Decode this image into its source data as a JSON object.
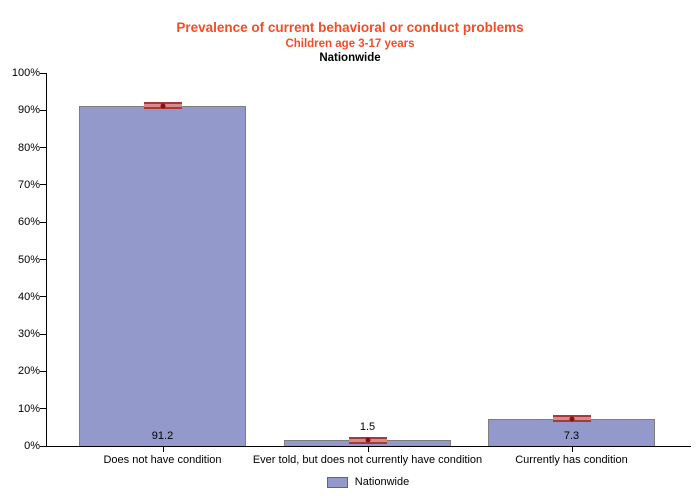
{
  "chart_data": {
    "type": "bar",
    "title": "Prevalence of current behavioral or conduct problems",
    "subtitle": "Children age 3-17 years",
    "region_line": "Nationwide",
    "categories": [
      "Does not have condition",
      "Ever told, but does not currently have condition",
      "Currently has condition"
    ],
    "series": [
      {
        "name": "Nationwide",
        "values": [
          91.2,
          1.5,
          7.3
        ]
      }
    ],
    "value_labels": [
      "91.2",
      "1.5",
      "7.3"
    ],
    "ylabel_ticks": [
      "0%",
      "10%",
      "20%",
      "30%",
      "40%",
      "50%",
      "60%",
      "70%",
      "80%",
      "90%",
      "100%"
    ],
    "ylim": [
      0,
      100
    ],
    "y_tick_step": 10,
    "grid": "off",
    "error_bars": true,
    "legend": {
      "position": "bottom",
      "entries": [
        "Nationwide"
      ]
    },
    "colors": {
      "title": "#F04E26",
      "subtitle": "#F04E26",
      "bar_fill": "#939ACB",
      "bar_border": "#7D7D7D",
      "error_fill": "#D68A8E",
      "error_line": "#A33B3B",
      "error_dot": "#8B1010",
      "axis": "#000000",
      "text": "#000000"
    }
  }
}
